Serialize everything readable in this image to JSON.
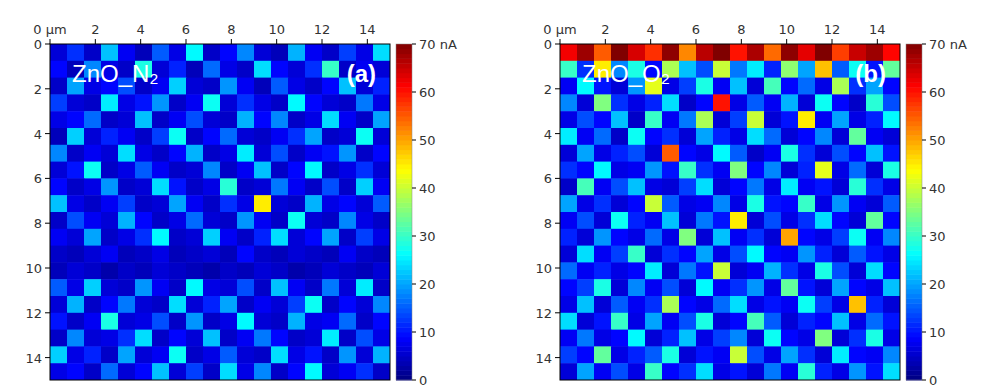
{
  "chart_data": [
    {
      "type": "heatmap",
      "title": "ZnO_N₂",
      "label": "(a)",
      "xlim": [
        0,
        15
      ],
      "ylim": [
        0,
        15
      ],
      "xticks": [
        {
          "value": 0,
          "label": "0 µm"
        },
        2,
        4,
        6,
        8,
        10,
        12,
        14
      ],
      "yticks": [
        0,
        2,
        4,
        6,
        8,
        10,
        12,
        14
      ],
      "colorbar": {
        "range": [
          0,
          70
        ],
        "ticks": [
          0,
          10,
          20,
          30,
          40,
          50,
          60,
          {
            "value": 70,
            "label": "70 nA"
          }
        ]
      },
      "cells": [
        [
          6,
          12,
          5,
          22,
          8,
          4,
          15,
          7,
          26,
          5,
          9,
          18,
          6,
          4,
          21,
          8,
          5,
          13,
          7,
          24
        ],
        [
          9,
          4,
          18,
          7,
          5,
          28,
          6,
          11,
          4,
          16,
          7,
          5,
          24,
          9,
          6,
          12,
          30,
          5,
          8,
          6
        ],
        [
          5,
          20,
          7,
          9,
          14,
          5,
          8,
          23,
          6,
          5,
          19,
          8,
          4,
          15,
          7,
          5,
          9,
          22,
          6,
          11
        ],
        [
          13,
          6,
          5,
          25,
          7,
          10,
          19,
          5,
          8,
          27,
          6,
          12,
          7,
          5,
          26,
          9,
          6,
          5,
          17,
          7
        ],
        [
          7,
          9,
          16,
          5,
          6,
          22,
          5,
          8,
          14,
          6,
          5,
          21,
          9,
          18,
          5,
          7,
          24,
          8,
          5,
          20
        ],
        [
          4,
          23,
          6,
          11,
          8,
          5,
          13,
          27,
          5,
          9,
          16,
          6,
          5,
          8,
          12,
          20,
          5,
          6,
          27,
          6
        ],
        [
          18,
          5,
          8,
          6,
          24,
          7,
          5,
          9,
          21,
          5,
          7,
          25,
          6,
          14,
          5,
          8,
          10,
          19,
          5,
          9
        ],
        [
          6,
          10,
          27,
          5,
          7,
          15,
          8,
          5,
          6,
          18,
          5,
          8,
          22,
          5,
          9,
          26,
          5,
          7,
          12,
          6
        ],
        [
          9,
          5,
          7,
          19,
          5,
          6,
          24,
          10,
          5,
          7,
          29,
          5,
          6,
          17,
          8,
          5,
          14,
          5,
          23,
          8
        ],
        [
          22,
          7,
          5,
          8,
          13,
          5,
          6,
          20,
          8,
          5,
          12,
          7,
          45,
          6,
          5,
          21,
          7,
          9,
          6,
          15
        ],
        [
          5,
          14,
          8,
          6,
          21,
          9,
          5,
          7,
          16,
          6,
          5,
          19,
          8,
          5,
          27,
          6,
          5,
          18,
          7,
          5
        ],
        [
          8,
          6,
          20,
          5,
          7,
          12,
          26,
          5,
          6,
          23,
          8,
          5,
          11,
          24,
          6,
          9,
          20,
          5,
          13,
          7
        ],
        [
          5,
          4,
          6,
          8,
          4,
          5,
          7,
          4,
          5,
          6,
          4,
          9,
          5,
          4,
          6,
          5,
          4,
          8,
          5,
          4
        ],
        [
          4,
          6,
          5,
          3,
          5,
          4,
          6,
          5,
          4,
          3,
          5,
          4,
          6,
          5,
          3,
          4,
          6,
          5,
          4,
          6
        ],
        [
          15,
          7,
          23,
          6,
          5,
          19,
          8,
          5,
          26,
          7,
          6,
          14,
          5,
          22,
          8,
          5,
          17,
          6,
          25,
          5
        ],
        [
          6,
          21,
          5,
          9,
          17,
          6,
          5,
          24,
          6,
          11,
          20,
          5,
          8,
          6,
          13,
          27,
          5,
          9,
          6,
          18
        ],
        [
          10,
          5,
          8,
          28,
          6,
          7,
          14,
          5,
          19,
          5,
          7,
          26,
          6,
          5,
          21,
          7,
          8,
          16,
          5,
          9
        ],
        [
          5,
          18,
          6,
          7,
          12,
          24,
          5,
          9,
          6,
          22,
          5,
          8,
          17,
          9,
          5,
          6,
          25,
          5,
          14,
          7
        ],
        [
          23,
          7,
          11,
          5,
          20,
          6,
          8,
          27,
          5,
          7,
          15,
          6,
          5,
          24,
          7,
          10,
          5,
          19,
          6,
          21
        ],
        [
          7,
          9,
          5,
          16,
          6,
          9,
          22,
          6,
          13,
          5,
          24,
          7,
          18,
          5,
          9,
          26,
          6,
          8,
          12,
          5
        ]
      ]
    },
    {
      "type": "heatmap",
      "title": "ZnO_O₂",
      "label": "(b)",
      "xlim": [
        0,
        15
      ],
      "ylim": [
        0,
        15
      ],
      "xticks": [
        {
          "value": 0,
          "label": "0 µm"
        },
        2,
        4,
        6,
        8,
        10,
        12,
        14
      ],
      "yticks": [
        0,
        2,
        4,
        6,
        8,
        10,
        12,
        14
      ],
      "colorbar": {
        "range": [
          0,
          70
        ],
        "ticks": [
          0,
          10,
          20,
          30,
          40,
          50,
          60,
          {
            "value": 70,
            "label": "70 nA"
          }
        ]
      },
      "cells": [
        [
          62,
          68,
          55,
          70,
          64,
          58,
          69,
          52,
          66,
          70,
          60,
          67,
          54,
          69,
          63,
          70,
          57,
          65,
          68,
          61
        ],
        [
          30,
          12,
          45,
          18,
          28,
          9,
          38,
          22,
          14,
          40,
          17,
          25,
          11,
          36,
          20,
          48,
          15,
          27,
          10,
          33
        ],
        [
          8,
          26,
          10,
          6,
          19,
          42,
          7,
          13,
          28,
          8,
          22,
          6,
          31,
          9,
          16,
          7,
          38,
          12,
          20,
          9
        ],
        [
          18,
          6,
          35,
          12,
          7,
          11,
          24,
          5,
          9,
          60,
          7,
          15,
          8,
          21,
          6,
          27,
          9,
          5,
          29,
          14
        ],
        [
          7,
          14,
          9,
          22,
          5,
          30,
          8,
          17,
          38,
          6,
          13,
          40,
          6,
          10,
          45,
          8,
          20,
          7,
          11,
          26
        ],
        [
          25,
          8,
          16,
          5,
          27,
          9,
          12,
          6,
          20,
          11,
          7,
          24,
          16,
          6,
          9,
          18,
          6,
          33,
          8,
          6
        ],
        [
          6,
          20,
          7,
          11,
          14,
          6,
          55,
          9,
          7,
          26,
          15,
          5,
          8,
          28,
          12,
          6,
          14,
          9,
          22,
          10
        ],
        [
          12,
          9,
          26,
          7,
          8,
          19,
          10,
          30,
          12,
          8,
          35,
          9,
          18,
          6,
          11,
          42,
          7,
          16,
          6,
          28
        ],
        [
          5,
          31,
          8,
          14,
          22,
          7,
          6,
          13,
          24,
          6,
          9,
          17,
          7,
          25,
          8,
          10,
          6,
          29,
          12,
          7
        ],
        [
          20,
          7,
          12,
          6,
          9,
          40,
          15,
          7,
          8,
          18,
          7,
          28,
          10,
          9,
          30,
          7,
          19,
          8,
          6,
          15
        ],
        [
          8,
          14,
          6,
          27,
          11,
          8,
          22,
          6,
          17,
          10,
          45,
          6,
          14,
          7,
          12,
          24,
          9,
          6,
          33,
          9
        ],
        [
          11,
          6,
          19,
          9,
          7,
          16,
          7,
          35,
          6,
          22,
          8,
          12,
          6,
          50,
          9,
          7,
          13,
          27,
          8,
          18
        ],
        [
          6,
          24,
          8,
          13,
          30,
          6,
          12,
          9,
          20,
          7,
          14,
          26,
          9,
          8,
          19,
          11,
          6,
          15,
          10,
          7
        ],
        [
          16,
          8,
          11,
          7,
          9,
          25,
          6,
          17,
          10,
          40,
          6,
          8,
          21,
          12,
          7,
          28,
          14,
          6,
          24,
          9
        ],
        [
          9,
          13,
          28,
          6,
          18,
          8,
          14,
          6,
          26,
          8,
          12,
          19,
          7,
          33,
          10,
          6,
          20,
          9,
          7,
          22
        ],
        [
          7,
          22,
          6,
          15,
          8,
          12,
          38,
          9,
          7,
          16,
          24,
          7,
          10,
          8,
          27,
          13,
          7,
          48,
          11,
          6
        ],
        [
          24,
          6,
          10,
          30,
          7,
          20,
          8,
          14,
          28,
          6,
          9,
          31,
          15,
          6,
          11,
          9,
          22,
          7,
          16,
          10
        ],
        [
          8,
          17,
          7,
          9,
          26,
          6,
          11,
          22,
          7,
          13,
          18,
          6,
          27,
          9,
          7,
          35,
          6,
          12,
          28,
          7
        ],
        [
          13,
          9,
          33,
          7,
          11,
          15,
          28,
          6,
          10,
          8,
          40,
          14,
          7,
          20,
          12,
          6,
          25,
          9,
          8,
          18
        ],
        [
          6,
          20,
          8,
          14,
          7,
          30,
          9,
          12,
          24,
          7,
          10,
          6,
          17,
          8,
          29,
          11,
          7,
          19,
          10,
          24
        ]
      ]
    }
  ]
}
